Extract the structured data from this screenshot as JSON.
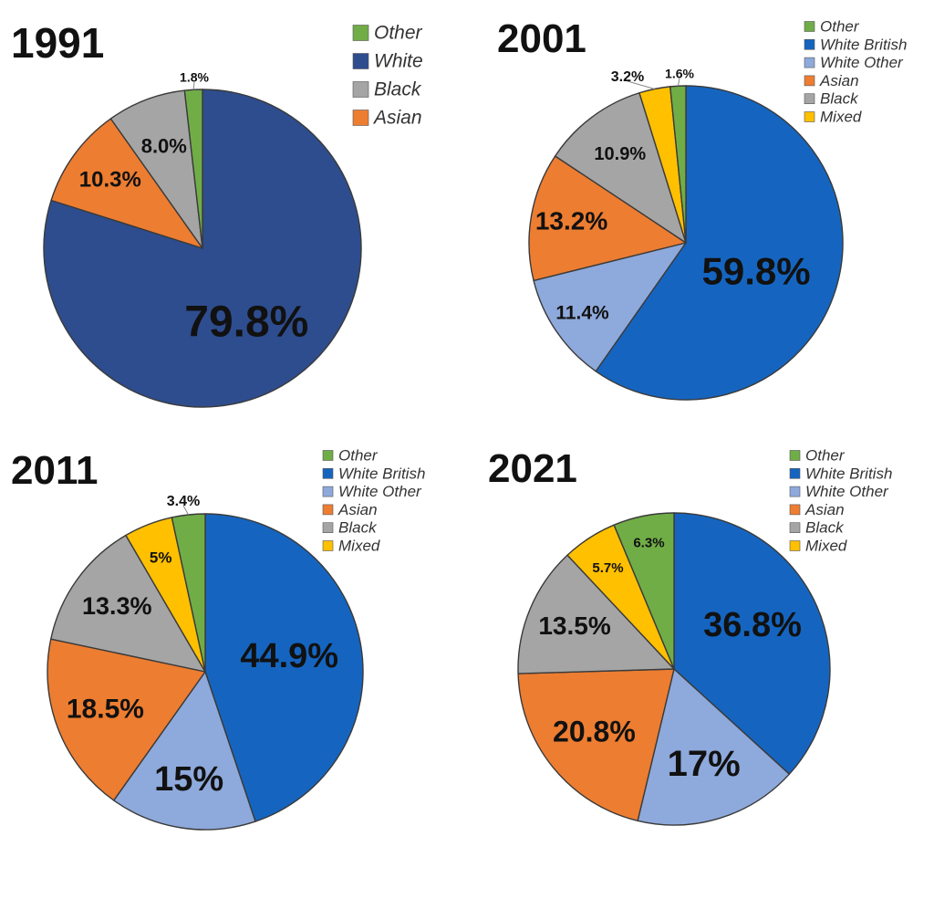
{
  "colors": {
    "white": "#2E4D8E",
    "white_british": "#1565C0",
    "white_other": "#8EA9DB",
    "asian": "#ED7D31",
    "black": "#A5A5A5",
    "mixed": "#FFC000",
    "other": "#70AD47"
  },
  "chart_data": [
    {
      "type": "pie",
      "title": "1991",
      "legend_placement": "top-right",
      "categories": [
        "White",
        "Asian",
        "Black",
        "Other"
      ],
      "values": [
        79.8,
        10.3,
        8.0,
        1.8
      ],
      "labels": [
        "79.8%",
        "10.3%",
        "8.0%",
        "1.8%"
      ],
      "color_keys": [
        "white",
        "asian",
        "black",
        "other"
      ]
    },
    {
      "type": "pie",
      "title": "2001",
      "legend_placement": "top-right",
      "categories": [
        "White British",
        "White Other",
        "Asian",
        "Black",
        "Mixed",
        "Other"
      ],
      "values": [
        59.8,
        11.4,
        13.2,
        10.9,
        3.2,
        1.6
      ],
      "labels": [
        "59.8%",
        "11.4%",
        "13.2%",
        "10.9%",
        "3.2%",
        "1.6%"
      ],
      "color_keys": [
        "white_british",
        "white_other",
        "asian",
        "black",
        "mixed",
        "other"
      ]
    },
    {
      "type": "pie",
      "title": "2011",
      "legend_placement": "top-right",
      "categories": [
        "White British",
        "White Other",
        "Asian",
        "Black",
        "Mixed",
        "Other"
      ],
      "values": [
        44.9,
        15,
        18.5,
        13.3,
        5,
        3.4
      ],
      "labels": [
        "44.9%",
        "15%",
        "18.5%",
        "13.3%",
        "5%",
        "3.4%"
      ],
      "color_keys": [
        "white_british",
        "white_other",
        "asian",
        "black",
        "mixed",
        "other"
      ]
    },
    {
      "type": "pie",
      "title": "2021",
      "legend_placement": "top-right",
      "categories": [
        "White British",
        "White Other",
        "Asian",
        "Black",
        "Mixed",
        "Other"
      ],
      "values": [
        36.8,
        17,
        20.8,
        13.5,
        5.7,
        6.3
      ],
      "labels": [
        "36.8%",
        "17%",
        "20.8%",
        "13.5%",
        "5.7%",
        "6.3%"
      ],
      "color_keys": [
        "white_british",
        "white_other",
        "asian",
        "black",
        "mixed",
        "other"
      ]
    }
  ]
}
